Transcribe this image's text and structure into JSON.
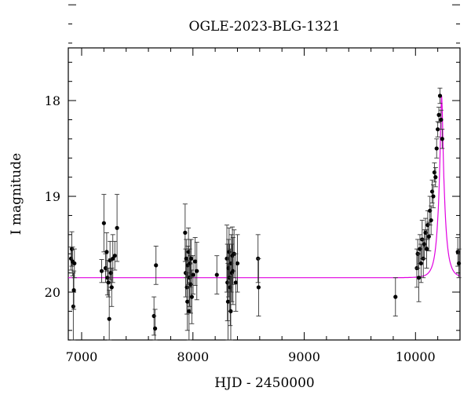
{
  "chart_data": {
    "type": "scatter",
    "title": "OGLE-2023-BLG-1321",
    "xlabel": "HJD - 2450000",
    "ylabel": "I magnitude",
    "xlim": [
      6880,
      10400
    ],
    "ylim": [
      20.5,
      17.45
    ],
    "y_inverted": true,
    "grid": false,
    "x_ticks": [
      7000,
      8000,
      9000,
      10000
    ],
    "y_ticks": [
      18,
      19,
      20
    ],
    "colors": {
      "points": "#000000",
      "model": "#e100e1"
    },
    "model": {
      "baseline_mag": 19.85,
      "t0": 10235,
      "peak_mag": 17.95,
      "tE": 55
    },
    "series": [
      {
        "x": [
          6905,
          6912,
          6918,
          6925,
          6930,
          6935,
          7180,
          7200,
          7215,
          7225,
          7232,
          7240,
          7248,
          7255,
          7262,
          7270,
          7280,
          7298,
          7318,
          7650,
          7660,
          7668,
          7930,
          7935,
          7940,
          7946,
          7950,
          7955,
          7960,
          7965,
          7970,
          7975,
          7980,
          7985,
          7990,
          8002,
          8020,
          8035,
          8215,
          8305,
          8310,
          8315,
          8320,
          8325,
          8330,
          8335,
          8340,
          8345,
          8350,
          8355,
          8360,
          8370,
          8385,
          8400,
          8585,
          8590,
          9820,
          10012,
          10020,
          10030,
          10040,
          10050,
          10060,
          10070,
          10080,
          10090,
          10100,
          10110,
          10120,
          10130,
          10140,
          10150,
          10160,
          10170,
          10180,
          10190,
          10200,
          10210,
          10220,
          10230,
          10240,
          10380,
          10390
        ],
        "y": [
          19.65,
          19.55,
          19.68,
          20.15,
          19.98,
          19.7,
          19.78,
          19.28,
          19.75,
          19.58,
          19.85,
          19.9,
          20.28,
          19.67,
          19.8,
          19.95,
          19.65,
          19.62,
          19.33,
          20.25,
          20.38,
          19.72,
          19.38,
          19.8,
          19.65,
          19.95,
          20.1,
          19.72,
          19.58,
          20.2,
          19.85,
          19.7,
          19.92,
          19.65,
          20.05,
          19.82,
          19.68,
          19.78,
          19.82,
          19.65,
          19.9,
          20.1,
          19.75,
          19.58,
          19.85,
          19.95,
          20.2,
          19.7,
          19.8,
          19.62,
          19.78,
          19.6,
          19.9,
          19.7,
          19.65,
          19.95,
          20.05,
          19.75,
          19.6,
          19.85,
          19.55,
          19.7,
          19.45,
          19.65,
          19.5,
          19.38,
          19.55,
          19.3,
          19.42,
          19.15,
          19.25,
          18.95,
          19.0,
          18.75,
          18.8,
          18.5,
          18.3,
          18.15,
          17.95,
          18.2,
          18.4,
          19.58,
          19.7
        ],
        "err": [
          0.12,
          0.18,
          0.15,
          0.35,
          0.2,
          0.15,
          0.12,
          0.3,
          0.15,
          0.2,
          0.18,
          0.15,
          0.3,
          0.2,
          0.15,
          0.2,
          0.25,
          0.15,
          0.35,
          0.2,
          0.2,
          0.2,
          0.3,
          0.25,
          0.2,
          0.28,
          0.3,
          0.2,
          0.25,
          0.3,
          0.3,
          0.25,
          0.3,
          0.2,
          0.28,
          0.2,
          0.25,
          0.3,
          0.2,
          0.35,
          0.4,
          0.4,
          0.3,
          0.25,
          0.35,
          0.4,
          0.35,
          0.3,
          0.3,
          0.3,
          0.35,
          0.25,
          0.3,
          0.3,
          0.25,
          0.3,
          0.2,
          0.2,
          0.15,
          0.25,
          0.15,
          0.2,
          0.2,
          0.2,
          0.15,
          0.15,
          0.2,
          0.15,
          0.15,
          0.15,
          0.15,
          0.12,
          0.12,
          0.1,
          0.1,
          0.1,
          0.08,
          0.08,
          0.08,
          0.1,
          0.1,
          0.15,
          0.15
        ]
      }
    ]
  }
}
